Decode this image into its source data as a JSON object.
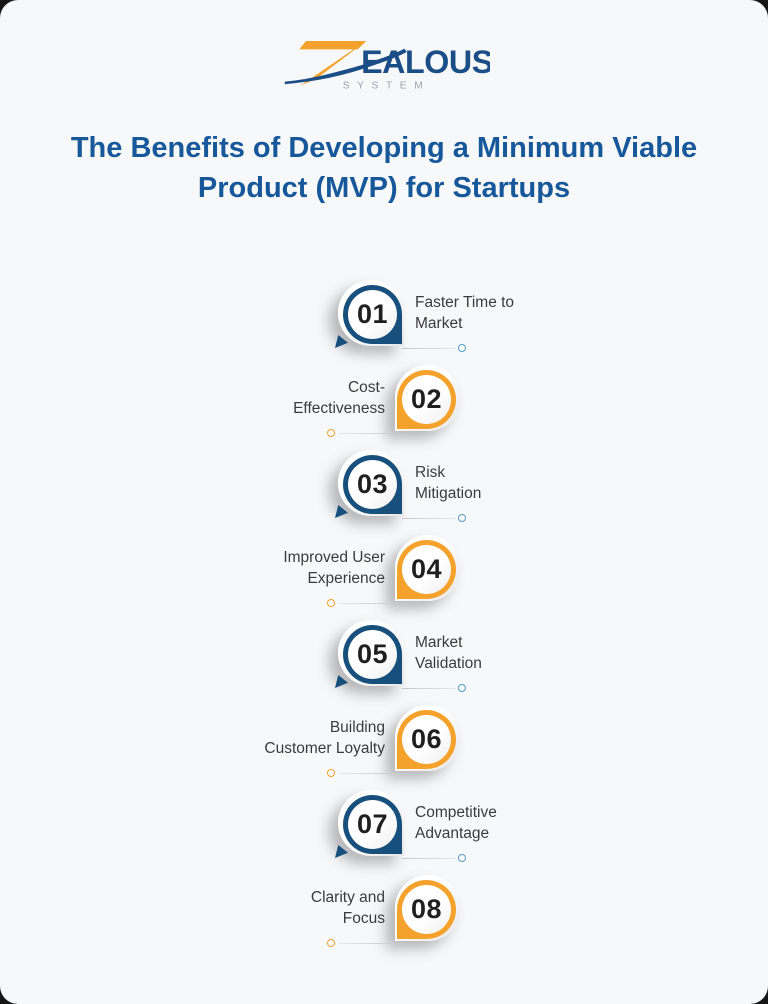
{
  "brand": {
    "wordmark_rest": "EALOUS",
    "subtitle": "SYSTEM"
  },
  "title": {
    "line1": "The Benefits of Developing a Minimum Viable",
    "line2": "Product (MVP) for Startups"
  },
  "colors": {
    "background": "#F7F8FA",
    "title_blue": "#16589A",
    "badge_blue": "#174F7D",
    "badge_orange": "#F4A22C",
    "dot_blue": "#4D9BC9",
    "dot_orange": "#EF9D33",
    "label_text": "#3B3B3B",
    "number_text": "#1F1F1F",
    "logo_blue": "#1B4E87",
    "logo_orange": "#F4A22C",
    "logo_gray": "#9CA3AA"
  },
  "items": [
    {
      "number": "01",
      "label": "Faster Time to Market",
      "label_lines": [
        "Faster Time to",
        "Market"
      ],
      "palette": "blue",
      "side": "right"
    },
    {
      "number": "02",
      "label": "Cost-Effectiveness",
      "label_lines": [
        "Cost-",
        "Effectiveness"
      ],
      "palette": "orange",
      "side": "left"
    },
    {
      "number": "03",
      "label": "Risk Mitigation",
      "label_lines": [
        "Risk",
        "Mitigation"
      ],
      "palette": "blue",
      "side": "right"
    },
    {
      "number": "04",
      "label": "Improved User Experience",
      "label_lines": [
        "Improved User",
        "Experience"
      ],
      "palette": "orange",
      "side": "left"
    },
    {
      "number": "05",
      "label": "Market Validation",
      "label_lines": [
        "Market",
        "Validation"
      ],
      "palette": "blue",
      "side": "right"
    },
    {
      "number": "06",
      "label": "Building Customer Loyalty",
      "label_lines": [
        "Building",
        "Customer Loyalty"
      ],
      "palette": "orange",
      "side": "left"
    },
    {
      "number": "07",
      "label": "Competitive Advantage",
      "label_lines": [
        "Competitive",
        "Advantage"
      ],
      "palette": "blue",
      "side": "right"
    },
    {
      "number": "08",
      "label": "Clarity and Focus",
      "label_lines": [
        "Clarity and",
        "Focus"
      ],
      "palette": "orange",
      "side": "left"
    }
  ]
}
